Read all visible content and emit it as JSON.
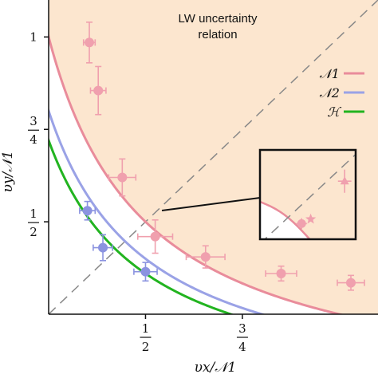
{
  "chart_data": {
    "type": "scatter",
    "xlabel": "υx/𝒩1",
    "ylabel": "υy/𝒩1",
    "xlim": [
      0.25,
      1.1
    ],
    "ylim": [
      0.25,
      1.1
    ],
    "x_ticks": [
      {
        "value": 0.5,
        "num": "1",
        "den": "2"
      },
      {
        "value": 0.75,
        "num": "3",
        "den": "4"
      }
    ],
    "y_ticks": [
      {
        "value": 0.5,
        "num": "1",
        "den": "2"
      },
      {
        "value": 0.75,
        "num": "3",
        "den": "4"
      },
      {
        "value": 1.0,
        "text": "1"
      }
    ],
    "annotations": {
      "region_line1": "LW uncertainty",
      "region_line2": "relation"
    },
    "region_fill": "#fce6cf",
    "curves": [
      {
        "name": "𝒩1",
        "k": 0.25,
        "color": "#e98c9b"
      },
      {
        "name": "𝒩2",
        "k": 0.2,
        "color": "#9aa2e6"
      },
      {
        "name": "ℋ",
        "k": 0.18,
        "color": "#22b420"
      }
    ],
    "diagonal": {
      "color": "#888888"
    },
    "series": [
      {
        "name": "𝒩1",
        "color": "#f0a0ae",
        "points": [
          {
            "x": 0.355,
            "y": 0.985,
            "xerr": 0.015,
            "yerr": 0.055
          },
          {
            "x": 0.378,
            "y": 0.855,
            "xerr": 0.02,
            "yerr": 0.065
          },
          {
            "x": 0.44,
            "y": 0.62,
            "xerr": 0.035,
            "yerr": 0.05
          },
          {
            "x": 0.525,
            "y": 0.46,
            "xerr": 0.045,
            "yerr": 0.045
          },
          {
            "x": 0.655,
            "y": 0.405,
            "xerr": 0.05,
            "yerr": 0.03
          },
          {
            "x": 0.85,
            "y": 0.36,
            "xerr": 0.04,
            "yerr": 0.02
          },
          {
            "x": 1.03,
            "y": 0.335,
            "xerr": 0.035,
            "yerr": 0.02
          }
        ]
      },
      {
        "name": "𝒩2",
        "color": "#8b93e0",
        "points": [
          {
            "x": 0.35,
            "y": 0.53,
            "xerr": 0.02,
            "yerr": 0.025
          },
          {
            "x": 0.39,
            "y": 0.43,
            "xerr": 0.025,
            "yerr": 0.035
          },
          {
            "x": 0.5,
            "y": 0.365,
            "xerr": 0.03,
            "yerr": 0.025
          }
        ]
      }
    ],
    "inset": {
      "points": [
        {
          "x": 0.435,
          "y": 0.175,
          "xerr": 0.055,
          "yerr": 0.06,
          "marker": "circle"
        },
        {
          "x": 0.53,
          "y": 0.225,
          "xerr": 0.0,
          "yerr": 0.0,
          "marker": "star"
        },
        {
          "x": 0.885,
          "y": 0.65,
          "xerr": 0.07,
          "yerr": 0.13,
          "marker": "triangle"
        }
      ]
    },
    "legend": {
      "placement": "right",
      "entries": [
        {
          "label": "𝒩1",
          "color": "#e98c9b"
        },
        {
          "label": "𝒩2",
          "color": "#9aa2e6"
        },
        {
          "label": "ℋ",
          "color": "#22b420"
        }
      ]
    },
    "grid": false
  }
}
